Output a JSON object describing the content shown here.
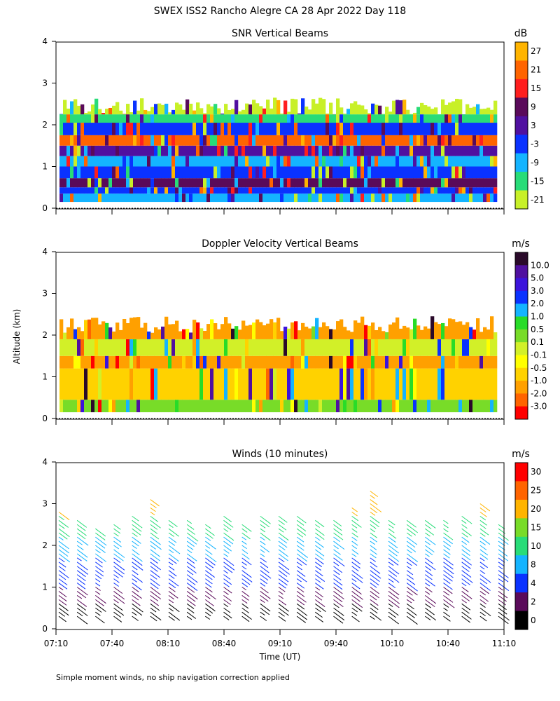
{
  "figure_title": "SWEX ISS2 Rancho Alegre CA  28 Apr 2022 Day 118",
  "ylabel": "Altitude (km)",
  "xlabel": "Time (UT)",
  "footnote": "Simple moment winds, no ship navigation correction applied",
  "chart_data": [
    {
      "type": "heatmap",
      "title": "SNR Vertical Beams",
      "x_ticks": [
        "07:10",
        "07:40",
        "08:10",
        "08:40",
        "09:10",
        "09:40",
        "10:10",
        "10:40",
        "11:10"
      ],
      "y_ticks": [
        "0",
        "1",
        "2",
        "3",
        "4"
      ],
      "ylim": [
        0,
        4
      ],
      "colorbar_unit": "dB",
      "colorbar_labels": [
        "27",
        "21",
        "15",
        "9",
        "3",
        "-3",
        "-9",
        "-15",
        "-21"
      ],
      "colorbar_colors": [
        "#ffb400",
        "#ff6400",
        "#ff1e1e",
        "#5a0a5a",
        "#5010a0",
        "#0a32ff",
        "#14b4ff",
        "#28dc78",
        "#c8f028"
      ],
      "layers": [
        {
          "y0": 0.15,
          "y1": 0.35,
          "color": "#14b4ff"
        },
        {
          "y0": 0.35,
          "y1": 0.5,
          "color": "#0a32ff"
        },
        {
          "y0": 0.5,
          "y1": 0.72,
          "color": "#5a0a5a"
        },
        {
          "y0": 0.72,
          "y1": 1.0,
          "color": "#0a32ff"
        },
        {
          "y0": 1.0,
          "y1": 1.25,
          "color": "#14b4ff"
        },
        {
          "y0": 1.25,
          "y1": 1.5,
          "color": "#5010a0"
        },
        {
          "y0": 1.5,
          "y1": 1.75,
          "color": "#ff6400"
        },
        {
          "y0": 1.75,
          "y1": 2.05,
          "color": "#0a32ff"
        },
        {
          "y0": 2.05,
          "y1": 2.25,
          "color": "#28dc78"
        },
        {
          "y0": 2.25,
          "y1": 2.45,
          "color": "#c8f028"
        }
      ]
    },
    {
      "type": "heatmap",
      "title": "Doppler Velocity Vertical Beams",
      "x_ticks": [
        "07:10",
        "07:40",
        "08:10",
        "08:40",
        "09:10",
        "09:40",
        "10:10",
        "10:40",
        "11:10"
      ],
      "y_ticks": [
        "0",
        "1",
        "2",
        "3",
        "4"
      ],
      "ylim": [
        0,
        4
      ],
      "colorbar_unit": "m/s",
      "colorbar_labels": [
        "10.0",
        "5.0",
        "3.0",
        "2.0",
        "1.0",
        "0.5",
        "0.1",
        "-0.1",
        "-0.5",
        "-1.0",
        "-2.0",
        "-3.0"
      ],
      "colorbar_colors": [
        "#2a0a2a",
        "#5010a0",
        "#3c14dc",
        "#0a32ff",
        "#14b4ff",
        "#28dc28",
        "#78dc28",
        "#d2f028",
        "#ffff00",
        "#ffd200",
        "#ffa000",
        "#ff6400",
        "#ff0000"
      ],
      "layers": [
        {
          "y0": 0.15,
          "y1": 0.45,
          "color": "#78dc28"
        },
        {
          "y0": 0.45,
          "y1": 1.2,
          "color": "#ffd200"
        },
        {
          "y0": 1.2,
          "y1": 1.5,
          "color": "#ffa000"
        },
        {
          "y0": 1.5,
          "y1": 1.9,
          "color": "#d2f028"
        },
        {
          "y0": 1.9,
          "y1": 2.25,
          "color": "#ffa000"
        }
      ]
    },
    {
      "type": "scatter",
      "title": "Winds (10 minutes)",
      "x_ticks": [
        "07:10",
        "07:40",
        "08:10",
        "08:40",
        "09:10",
        "09:40",
        "10:10",
        "10:40",
        "11:10"
      ],
      "y_ticks": [
        "0",
        "1",
        "2",
        "3",
        "4"
      ],
      "ylim": [
        0,
        4
      ],
      "colorbar_unit": "m/s",
      "colorbar_labels": [
        "30",
        "25",
        "20",
        "15",
        "10",
        "8",
        "4",
        "2",
        "0"
      ],
      "colorbar_colors": [
        "#ff0000",
        "#ff6400",
        "#ffb400",
        "#78dc28",
        "#28dc78",
        "#14b4ff",
        "#0a32ff",
        "#5a0a5a",
        "#000000"
      ],
      "profile_times_min": [
        0,
        10,
        20,
        30,
        40,
        50,
        60,
        70,
        80,
        90,
        100,
        110,
        120,
        130,
        140,
        150,
        160,
        170,
        180,
        190,
        200,
        210,
        220,
        230,
        240
      ],
      "profile_tops_km": [
        2.85,
        2.7,
        2.5,
        2.6,
        2.75,
        3.15,
        2.65,
        2.7,
        2.6,
        2.8,
        2.6,
        2.75,
        2.8,
        2.8,
        2.65,
        2.65,
        3.0,
        3.35,
        2.7,
        2.7,
        2.7,
        2.7,
        2.8,
        3.1,
        2.6
      ]
    }
  ]
}
